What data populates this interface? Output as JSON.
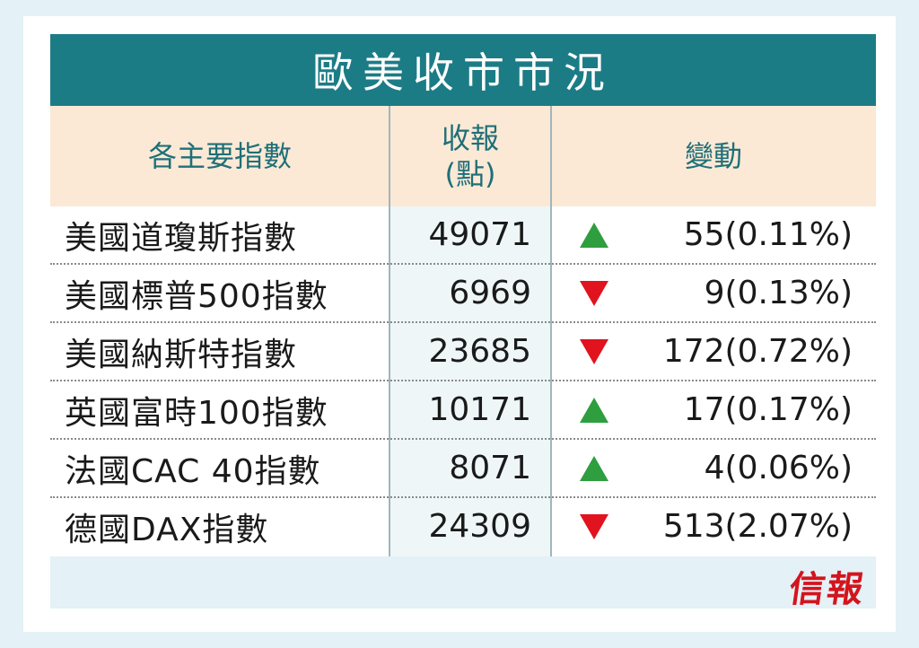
{
  "title": "歐美收市市況",
  "headers": {
    "name": "各主要指數",
    "close_line1": "收報",
    "close_line2": "(點)",
    "change": "變動"
  },
  "rows": [
    {
      "name": "美國道瓊斯指數",
      "close": "49071",
      "direction": "up",
      "change": "55(0.11%)"
    },
    {
      "name": "美國標普500指數",
      "close": "6969",
      "direction": "down",
      "change": "9(0.13%)"
    },
    {
      "name": "美國納斯特指數",
      "close": "23685",
      "direction": "down",
      "change": "172(0.72%)"
    },
    {
      "name": "英國富時100指數",
      "close": "10171",
      "direction": "up",
      "change": "17(0.17%)"
    },
    {
      "name": "法國CAC 40指數",
      "close": "8071",
      "direction": "up",
      "change": "4(0.06%)"
    },
    {
      "name": "德國DAX指數",
      "close": "24309",
      "direction": "down",
      "change": "513(2.07%)"
    }
  ],
  "logo": "信報",
  "colors": {
    "title_bg": "#1c7c86",
    "header_bg": "#fbe9d6",
    "up": "#2e9e3e",
    "down": "#e0131e",
    "logo": "#d4141d"
  }
}
